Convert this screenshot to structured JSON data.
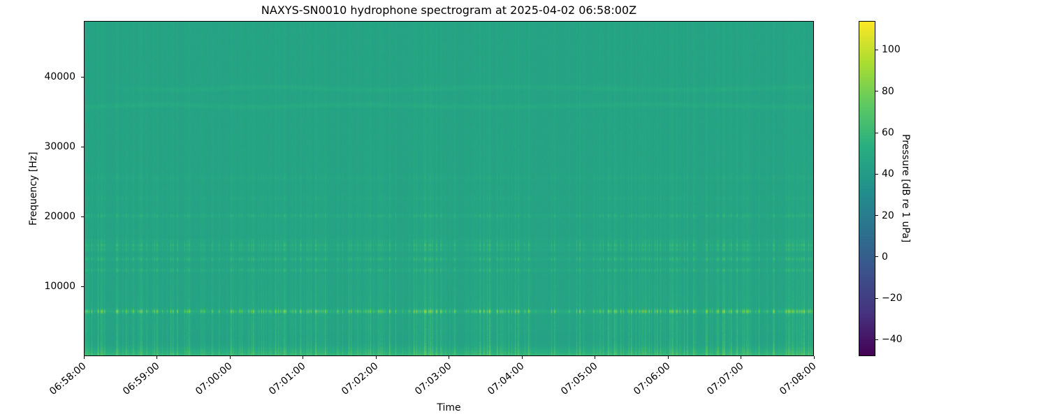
{
  "figure": {
    "title": "NAXYS-SN0010 hydrophone spectrogram at 2025-04-02 06:58:00Z",
    "xlabel": "Time",
    "ylabel": "Frequency [Hz]",
    "colorbar_label": "Pressure [dB re 1 uPa]"
  },
  "chart_data": {
    "type": "heatmap",
    "subtype": "spectrogram",
    "title": "NAXYS-SN0010 hydrophone spectrogram at 2025-04-02 06:58:00Z",
    "xlabel": "Time",
    "ylabel": "Frequency [Hz]",
    "x_tick_labels": [
      "06:58:00",
      "06:59:00",
      "07:00:00",
      "07:01:00",
      "07:02:00",
      "07:03:00",
      "07:04:00",
      "07:05:00",
      "07:06:00",
      "07:07:00",
      "07:08:00"
    ],
    "x_span_minutes": 10,
    "y_range_hz": [
      0,
      48000
    ],
    "y_ticks": [
      {
        "value": 10000,
        "label": "10000"
      },
      {
        "value": 20000,
        "label": "20000"
      },
      {
        "value": 30000,
        "label": "30000"
      },
      {
        "value": 40000,
        "label": "40000"
      }
    ],
    "grid": false,
    "legend": "none",
    "colorbar": {
      "label": "Pressure [dB re 1 uPa]",
      "colormap": "viridis",
      "vmin": -48,
      "vmax": 114,
      "ticks": [
        {
          "value": 100,
          "label": "100"
        },
        {
          "value": 80,
          "label": "80"
        },
        {
          "value": 60,
          "label": "60"
        },
        {
          "value": 40,
          "label": "40"
        },
        {
          "value": 20,
          "label": "20"
        },
        {
          "value": 0,
          "label": "0"
        },
        {
          "value": -20,
          "label": "−20"
        },
        {
          "value": -40,
          "label": "−40"
        }
      ]
    },
    "content": {
      "background_level_db": 45.5,
      "pixel_noise_db": 1.8,
      "low_freq_boost": {
        "below_hz": 1500,
        "extra_db_at_0hz": 12
      },
      "mid_low_dip": {
        "center_hz": 2600,
        "sigma_hz": 900,
        "db": -1.5
      },
      "broadband_impulses": {
        "description": "dense vertical striations (impulsive broadband noise), strongest below ~16 kHz, faint up to 48 kHz",
        "max_extra_db": 20,
        "hf_decay_hz": 10000,
        "hf_floor_fraction": 0.15,
        "occurrence": 0.52,
        "seed": 20250402
      },
      "tonal_bands": [
        {
          "center_hz": 6400,
          "peak_extra_db": 27,
          "sigma_hz": 190,
          "character": "pulsed"
        },
        {
          "center_hz": 12300,
          "peak_extra_db": 8.5,
          "sigma_hz": 170,
          "character": "pulsed"
        },
        {
          "center_hz": 13900,
          "peak_extra_db": 10,
          "sigma_hz": 190,
          "character": "pulsed"
        },
        {
          "center_hz": 15250,
          "peak_extra_db": 8.5,
          "sigma_hz": 180,
          "character": "pulsed"
        },
        {
          "center_hz": 15900,
          "peak_extra_db": 11,
          "sigma_hz": 200,
          "character": "pulsed"
        },
        {
          "center_hz": 16500,
          "peak_extra_db": 5,
          "sigma_hz": 170,
          "character": "pulsed"
        },
        {
          "center_hz": 20100,
          "peak_extra_db": 8,
          "sigma_hz": 200,
          "character": "pulsed"
        },
        {
          "center_hz": 22600,
          "peak_extra_db": 3,
          "sigma_hz": 260,
          "character": "pulsed"
        },
        {
          "center_hz": 25600,
          "peak_extra_db": 3.5,
          "sigma_hz": 260,
          "character": "pulsed"
        },
        {
          "center_hz": 35900,
          "peak_extra_db": 4.5,
          "sigma_hz": 230,
          "character": "continuous",
          "wobble_hz": 170
        },
        {
          "center_hz": 38400,
          "peak_extra_db": 4.2,
          "sigma_hz": 230,
          "character": "continuous",
          "wobble_hz": 200,
          "fade_in": true
        }
      ]
    }
  }
}
